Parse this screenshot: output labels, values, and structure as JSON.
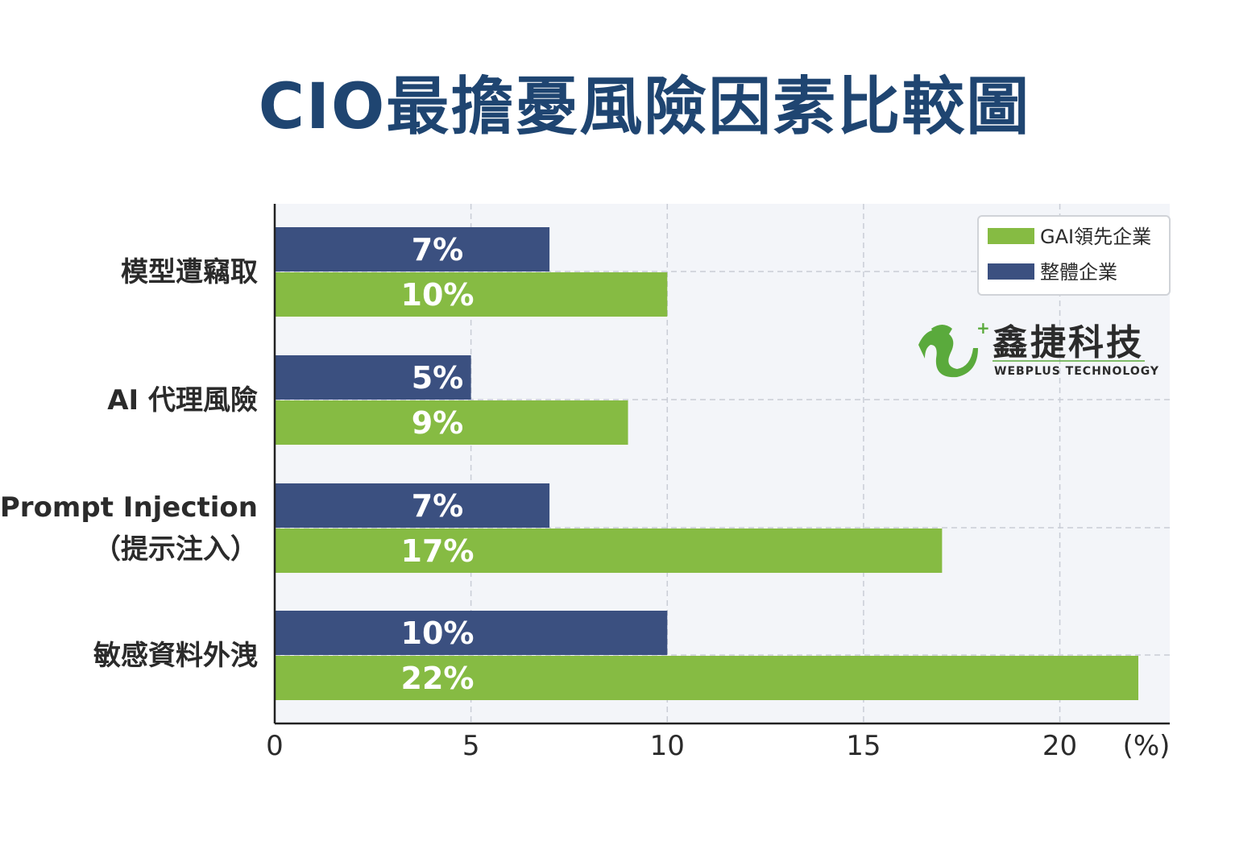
{
  "chart_data": {
    "type": "bar",
    "orientation": "horizontal",
    "title": "CIO最擔憂風險因素比較圖",
    "categories": [
      [
        "模型遭竊取"
      ],
      [
        "AI 代理風險"
      ],
      [
        "Prompt Injection",
        "（提示注入）"
      ],
      [
        "敏感資料外洩"
      ]
    ],
    "series": [
      {
        "name": "整體企業",
        "values": [
          7,
          5,
          7,
          10
        ],
        "labels": [
          "7%",
          "5%",
          "7%",
          "10%"
        ],
        "color": "#3b5080"
      },
      {
        "name": "GAI領先企業",
        "values": [
          10,
          9,
          17,
          22
        ],
        "labels": [
          "10%",
          "9%",
          "17%",
          "22%"
        ],
        "color": "#86bb43"
      }
    ],
    "xlim": [
      0,
      22.8
    ],
    "xticks": [
      "0",
      "5",
      "10",
      "15",
      "20"
    ],
    "xtick_values": [
      0,
      5,
      10,
      15,
      20
    ],
    "x_unit_label": "(%)",
    "grid": true,
    "legend": {
      "placement": "top-right",
      "entries": [
        {
          "label": "GAI領先企業",
          "color": "#86bb43"
        },
        {
          "label": "整體企業",
          "color": "#3b5080"
        }
      ]
    },
    "plot_background": "#f3f5f9"
  },
  "logo": {
    "name_zh": "鑫捷科技",
    "name_en": "WEBPLUS TECHNOLOGY",
    "icon": "webplus-logo-icon",
    "color": "#5aaa3c"
  }
}
